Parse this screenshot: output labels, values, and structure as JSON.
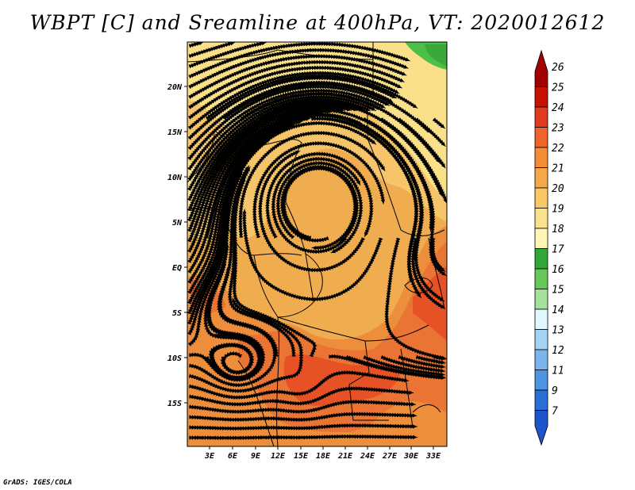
{
  "title": "WBPT [C] and Sreamline at 400hPa, VT: 2020012612",
  "credit": "GrADS: IGES/COLA",
  "map": {
    "lat_labels": [
      "20N",
      "15N",
      "10N",
      "5N",
      "EQ",
      "5S",
      "10S",
      "15S"
    ],
    "lon_labels": [
      "3E",
      "6E",
      "9E",
      "12E",
      "15E",
      "18E",
      "21E",
      "24E",
      "27E",
      "30E",
      "33E"
    ],
    "field_colors": {
      "c19": "#fbe08a",
      "c20": "#f6c56a",
      "c21": "#f0ad50",
      "c22": "#ec8e3c",
      "c23": "#ea7434",
      "c24": "#e65226",
      "c18": "#4cbf48",
      "c17": "#3aa83a"
    }
  },
  "colorbar": {
    "labels": [
      "26",
      "25",
      "24",
      "23",
      "22",
      "21",
      "20",
      "19",
      "18",
      "17",
      "16",
      "15",
      "14",
      "13",
      "12",
      "11",
      "9",
      "7"
    ],
    "colors": [
      "#a30000",
      "#c81000",
      "#e03a1f",
      "#f0642a",
      "#f58c38",
      "#f7a84a",
      "#f9c766",
      "#fbe28c",
      "#fff5b4",
      "#31a836",
      "#66c858",
      "#a6e09a",
      "#e0f8ff",
      "#a6d4f4",
      "#7ab6ee",
      "#4d94e3",
      "#2a6fd8",
      "#1f55cc"
    ]
  }
}
